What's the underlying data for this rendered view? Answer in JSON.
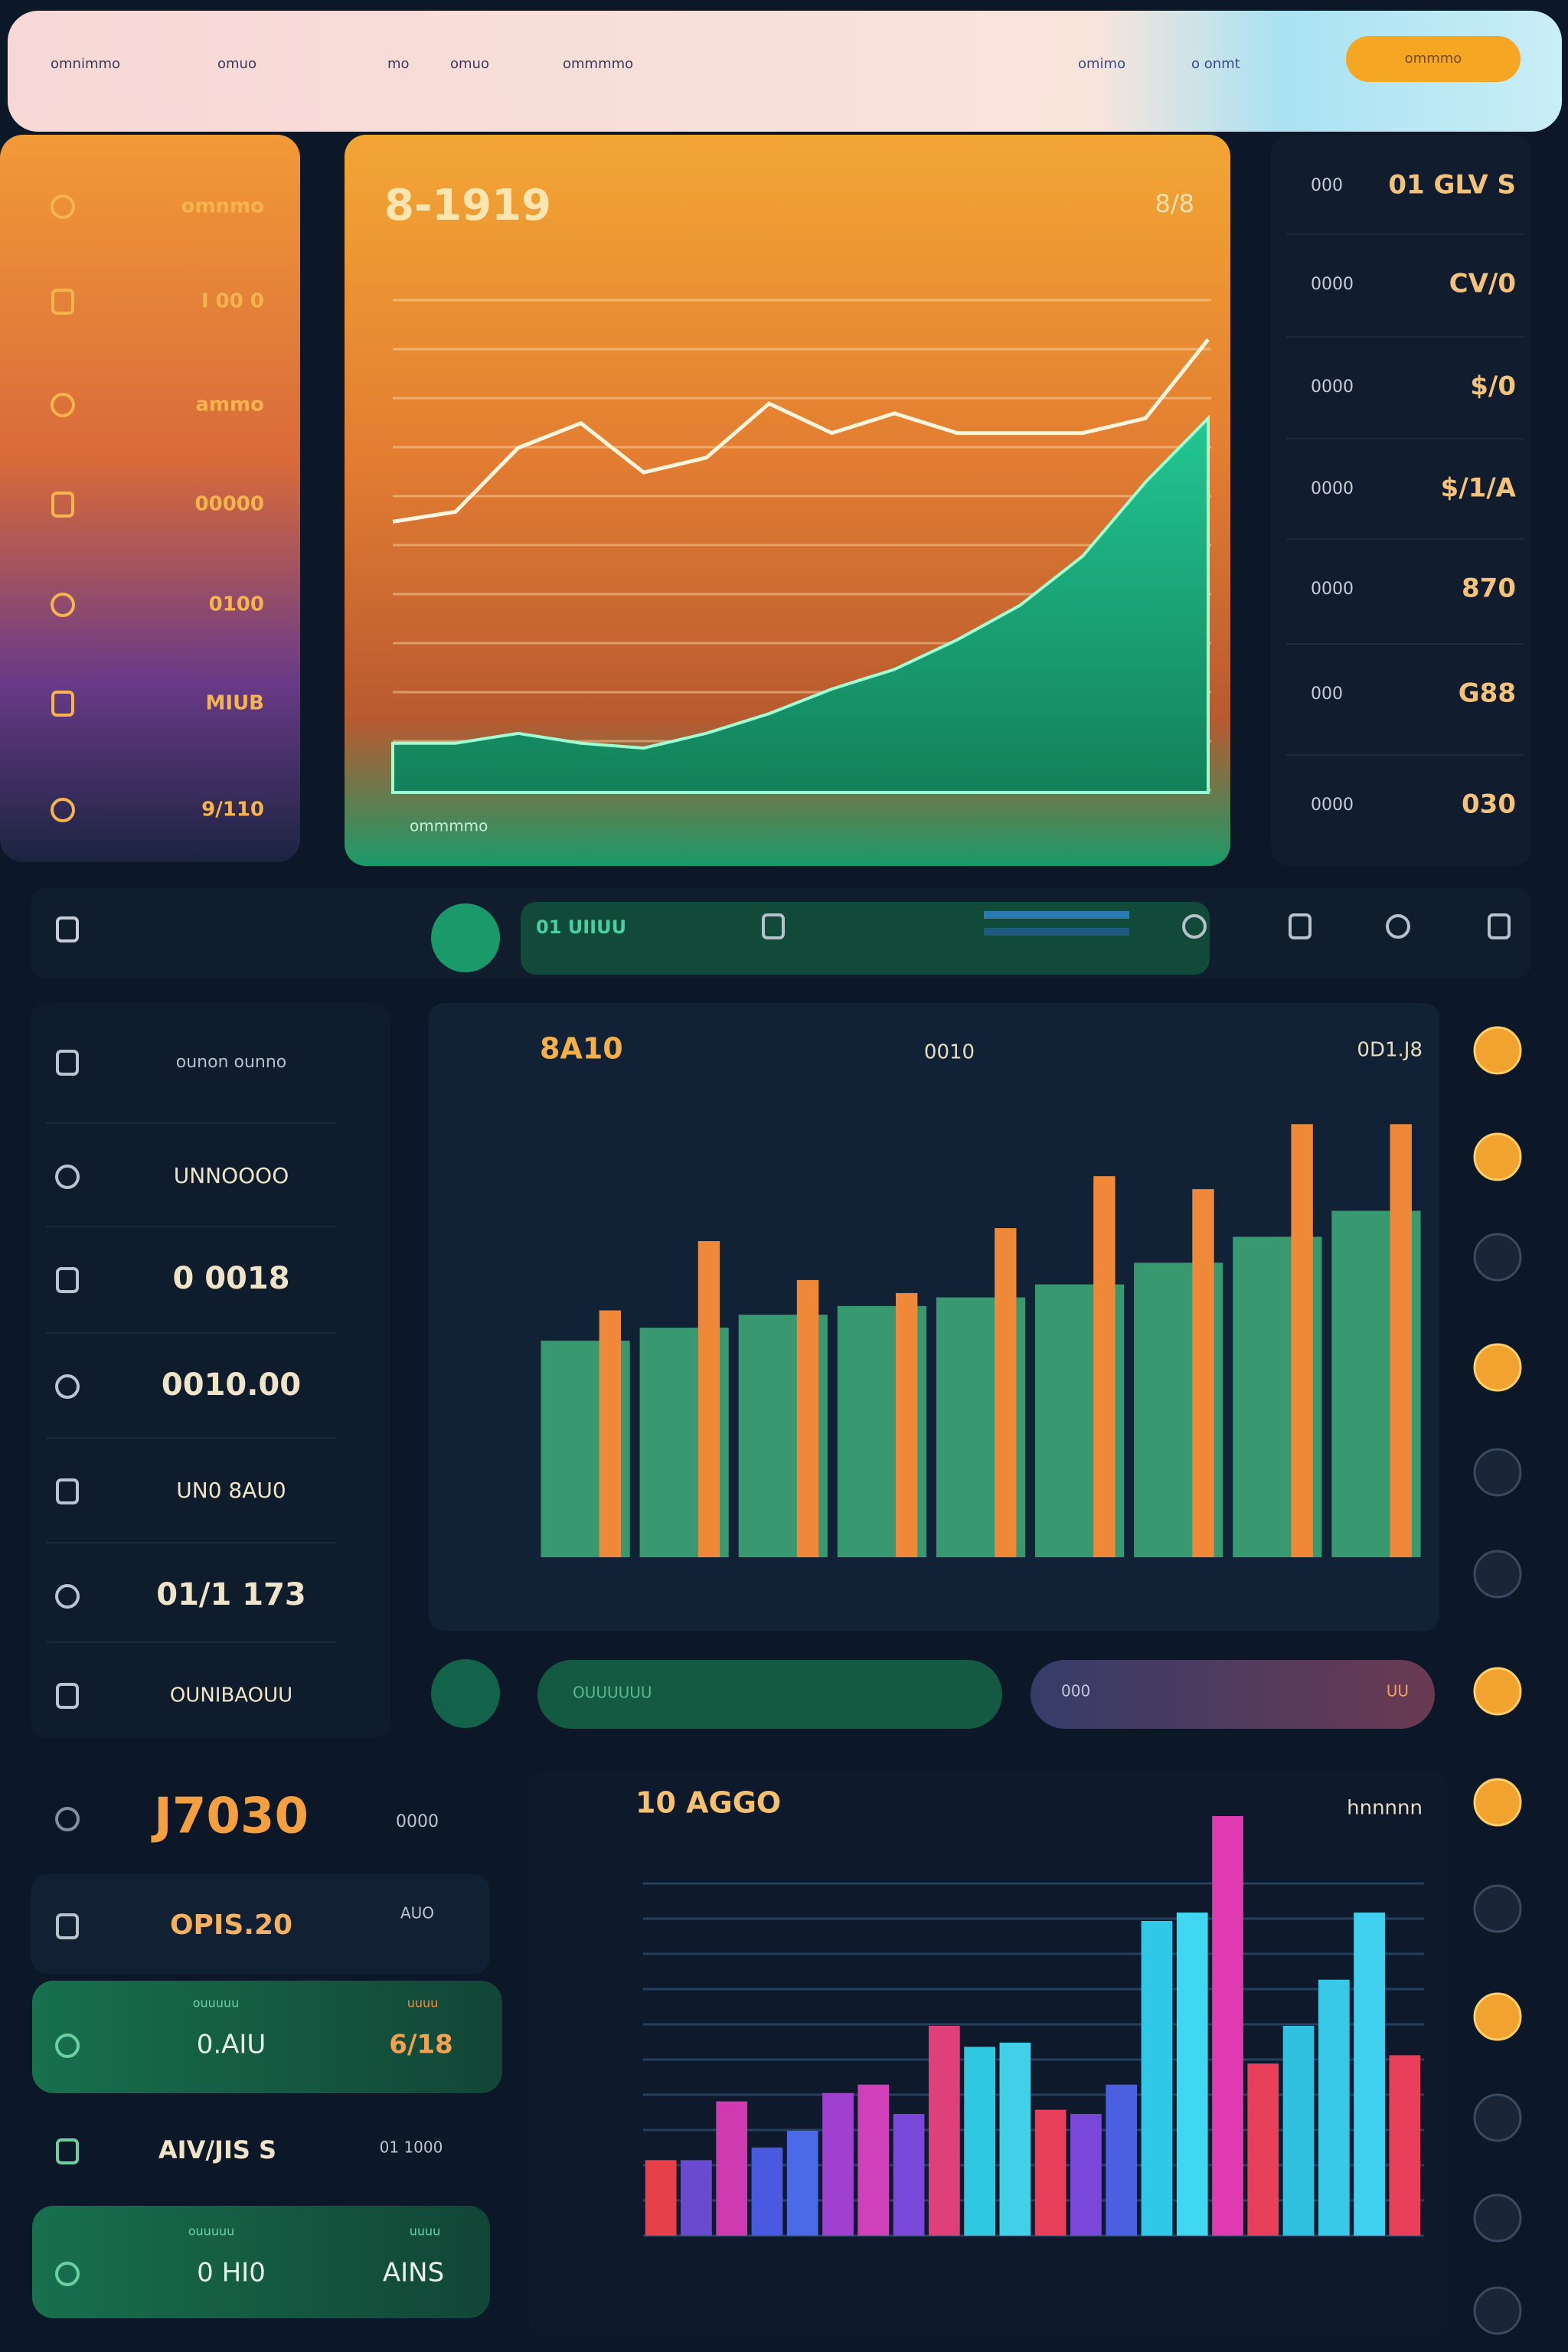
{
  "nav": {
    "links": [
      "omnimmo",
      "omuo",
      "mo",
      "omuo",
      "ommmmo"
    ],
    "right_links": [
      "omimo",
      "o onmt"
    ],
    "button": "ommmo"
  },
  "sidebar": {
    "items": [
      "omnmo",
      "I 00 0",
      "ammo",
      "00000",
      "0100",
      "MIUB",
      "9/110"
    ]
  },
  "stats": {
    "rows": [
      [
        "000",
        "01 GLV S"
      ],
      [
        "0000",
        "CV/0"
      ],
      [
        "0000",
        "$/0"
      ],
      [
        "0000",
        "$/1/A"
      ],
      [
        "0000",
        "870"
      ],
      [
        "000",
        "G88"
      ],
      [
        "0000",
        "030"
      ]
    ]
  },
  "toolbar": {
    "label": "01 UIIUU"
  },
  "list": {
    "items": [
      "ounon ounno",
      "UNNOOOO",
      "0 0018",
      "0010.00",
      "UN0 8AU0",
      "01/1 173",
      "OUNIBAOUU"
    ]
  },
  "pills": {
    "search": "OUUUUUU",
    "range_start": "000",
    "range_end": "UU"
  },
  "summary": {
    "rows": [
      {
        "value": "J7030",
        "label": "0000"
      },
      {
        "value": "OPIS.20",
        "label": "AUO"
      }
    ],
    "card": {
      "caption": "ouuuuu",
      "badge": "uuuu",
      "value": "0.AIU",
      "side": "6/18"
    },
    "row": {
      "value": "AIV/JIS S",
      "label": "01 1000"
    },
    "card2": {
      "caption": "ouuuuu",
      "badge": "uuuu",
      "value": "0 HI0",
      "side": "AINS"
    }
  },
  "chart_data": [
    {
      "type": "line",
      "title": "8-1919",
      "badge": "8/8",
      "footer": "ommmmo",
      "categories": [
        null,
        null,
        null,
        null,
        null,
        null,
        null,
        null,
        null,
        null,
        null,
        null,
        null,
        null
      ],
      "ylim": [
        0,
        100
      ],
      "series": [
        {
          "type": "area",
          "color": "#1fbf8a",
          "values": [
            10,
            10,
            12,
            10,
            9,
            12,
            16,
            21,
            25,
            31,
            38,
            48,
            63,
            76
          ]
        },
        {
          "type": "line",
          "color": "#fff4dc",
          "values": [
            55,
            57,
            70,
            75,
            65,
            68,
            79,
            73,
            77,
            73,
            73,
            73,
            76,
            92
          ]
        }
      ]
    },
    {
      "type": "bar",
      "title": "8A10",
      "annotations": [
        "0010",
        "0D1.J8"
      ],
      "categories": [
        null,
        null,
        null,
        null,
        null,
        null,
        null,
        null,
        null
      ],
      "ylim": [
        0,
        105
      ],
      "series": [
        {
          "color": "#3fae7a",
          "values": [
            50,
            53,
            56,
            58,
            60,
            63,
            68,
            74,
            80
          ]
        },
        {
          "color": "#f0883a",
          "values": [
            57,
            73,
            64,
            61,
            76,
            88,
            85,
            100,
            100
          ]
        }
      ]
    },
    {
      "type": "bar",
      "title": "10 AGGO",
      "annotations": [
        "hnnnnn"
      ],
      "categories": [
        null,
        null,
        null,
        null,
        null,
        null,
        null,
        null,
        null,
        null,
        null,
        null,
        null,
        null,
        null,
        null,
        null,
        null,
        null,
        null,
        null,
        null
      ],
      "ylim": [
        0,
        100
      ],
      "values": [
        18,
        18,
        32,
        21,
        25,
        34,
        36,
        29,
        50,
        45,
        46,
        30,
        29,
        36,
        75,
        77,
        100,
        41,
        50,
        61,
        77,
        43
      ],
      "colors": [
        "#e8404a",
        "#6a4ad0",
        "#d03ab0",
        "#4a5ae0",
        "#4a6ae8",
        "#a040d0",
        "#d040b8",
        "#7a48d8",
        "#e0407a",
        "#30c8e0",
        "#40d0e8",
        "#e8405a",
        "#7a48d8",
        "#4a60e0",
        "#30c8e8",
        "#40d8f0",
        "#e03ab0",
        "#e8405a",
        "#30c0e0",
        "#38c8e8",
        "#40d0f0",
        "#e8405a"
      ]
    }
  ]
}
